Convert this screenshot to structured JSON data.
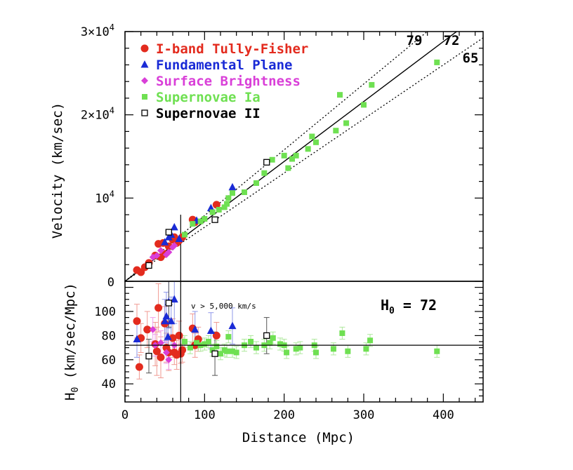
{
  "chart_data": [
    {
      "panel": "top",
      "type": "scatter",
      "ylabel": "Velocity (km/sec)",
      "xlim": [
        0,
        450
      ],
      "ylim": [
        0,
        30000
      ],
      "yticks": [
        {
          "value": 0,
          "label": "0"
        },
        {
          "value": 10000,
          "label": "10",
          "sup": "4"
        },
        {
          "value": 20000,
          "label": "2×10",
          "sup": "4"
        },
        {
          "value": 30000,
          "label": "3×10",
          "sup": "4"
        }
      ],
      "colors": {
        "tf": "#e32b1e",
        "fp": "#1a2bd6",
        "sbf": "#d93fd8",
        "sn1a": "#6fe052",
        "sn2": "#000000",
        "axis": "#000000"
      },
      "legend": [
        {
          "key": "tf",
          "marker": "circle",
          "label": "I-band Tully-Fisher"
        },
        {
          "key": "fp",
          "marker": "triangle",
          "label": "Fundamental Plane"
        },
        {
          "key": "sbf",
          "marker": "diamond",
          "label": "Surface Brightness"
        },
        {
          "key": "sn1a",
          "marker": "square",
          "label": "Supernovae Ia"
        },
        {
          "key": "sn2",
          "marker": "open-square",
          "label": "Supernovae II"
        }
      ],
      "hubble_lines": [
        {
          "h0": 79,
          "label": "79",
          "style": "dotted"
        },
        {
          "h0": 72,
          "label": "72",
          "style": "solid"
        },
        {
          "h0": 65,
          "label": "65",
          "style": "dotted"
        }
      ],
      "vline_x": 70,
      "series": [
        {
          "key": "tf",
          "points": [
            [
              15,
              1350
            ],
            [
              20,
              1100
            ],
            [
              25,
              1700
            ],
            [
              30,
              2200
            ],
            [
              38,
              3100
            ],
            [
              42,
              4500
            ],
            [
              45,
              2900
            ],
            [
              48,
              4600
            ],
            [
              50,
              3300
            ],
            [
              55,
              4200
            ],
            [
              60,
              5000
            ],
            [
              62,
              5300
            ],
            [
              65,
              4600
            ],
            [
              68,
              4900
            ],
            [
              72,
              5300
            ],
            [
              85,
              7400
            ],
            [
              88,
              7100
            ],
            [
              115,
              9200
            ]
          ]
        },
        {
          "key": "fp",
          "points": [
            [
              50,
              4700
            ],
            [
              55,
              5300
            ],
            [
              58,
              5600
            ],
            [
              62,
              6500
            ],
            [
              68,
              5100
            ],
            [
              90,
              7300
            ],
            [
              108,
              8800
            ],
            [
              135,
              11300
            ]
          ]
        },
        {
          "key": "sbf",
          "points": [
            [
              35,
              2900
            ],
            [
              40,
              3100
            ],
            [
              45,
              3700
            ],
            [
              52,
              3200
            ],
            [
              55,
              3500
            ],
            [
              60,
              4100
            ],
            [
              62,
              4300
            ]
          ]
        },
        {
          "key": "sn1a",
          "points": [
            [
              75,
              5600
            ],
            [
              85,
              6900
            ],
            [
              95,
              7200
            ],
            [
              100,
              7500
            ],
            [
              110,
              8300
            ],
            [
              118,
              8600
            ],
            [
              125,
              8900
            ],
            [
              128,
              9300
            ],
            [
              130,
              10000
            ],
            [
              135,
              10600
            ],
            [
              150,
              10700
            ],
            [
              165,
              11800
            ],
            [
              175,
              13000
            ],
            [
              185,
              14600
            ],
            [
              200,
              15100
            ],
            [
              205,
              13600
            ],
            [
              210,
              14700
            ],
            [
              215,
              15100
            ],
            [
              230,
              15900
            ],
            [
              235,
              17400
            ],
            [
              240,
              16700
            ],
            [
              265,
              18100
            ],
            [
              270,
              22400
            ],
            [
              278,
              19000
            ],
            [
              300,
              21200
            ],
            [
              310,
              23600
            ],
            [
              392,
              26300
            ]
          ]
        },
        {
          "key": "sn2",
          "points": [
            [
              30,
              1900
            ],
            [
              55,
              5900
            ],
            [
              113,
              7400
            ],
            [
              178,
              14300
            ]
          ]
        }
      ]
    },
    {
      "panel": "bottom",
      "type": "scatter",
      "xlabel": "Distance (Mpc)",
      "ylabel": "H",
      "ylabel_sub": "0",
      "ylabel_rest": " (km/sec/Mpc)",
      "xlim": [
        0,
        450
      ],
      "ylim": [
        25,
        125
      ],
      "xticks": [
        0,
        100,
        200,
        300,
        400
      ],
      "yticks": [
        40,
        60,
        80,
        100
      ],
      "hline_y": 72,
      "vline_x": 70,
      "annotation": "v > 5,000 km/s",
      "h0_label": "H",
      "h0_sub": "0",
      "h0_value": " =  72",
      "series": [
        {
          "key": "tf",
          "points": [
            [
              15,
              92,
              14
            ],
            [
              18,
              54,
              10
            ],
            [
              20,
              78,
              12
            ],
            [
              28,
              85,
              15
            ],
            [
              38,
              73,
              18
            ],
            [
              40,
              67,
              20
            ],
            [
              42,
              103,
              20
            ],
            [
              45,
              62,
              17
            ],
            [
              50,
              90,
              14
            ],
            [
              52,
              70,
              12
            ],
            [
              55,
              66,
              15
            ],
            [
              60,
              78,
              16
            ],
            [
              62,
              66,
              10
            ],
            [
              65,
              64,
              12
            ],
            [
              68,
              80,
              12
            ],
            [
              70,
              65,
              8
            ],
            [
              72,
              68,
              10
            ],
            [
              85,
              86,
              12
            ],
            [
              88,
              72,
              10
            ],
            [
              92,
              77,
              10
            ],
            [
              115,
              80,
              11
            ]
          ]
        },
        {
          "key": "fp",
          "points": [
            [
              15,
              77,
              15
            ],
            [
              50,
              92,
              18
            ],
            [
              52,
              96,
              20
            ],
            [
              54,
              79,
              15
            ],
            [
              55,
              108,
              22
            ],
            [
              58,
              92,
              20
            ],
            [
              62,
              110,
              20
            ],
            [
              88,
              85,
              15
            ],
            [
              108,
              84,
              15
            ],
            [
              135,
              88,
              15
            ]
          ]
        },
        {
          "key": "sbf",
          "points": [
            [
              35,
              85,
              10
            ],
            [
              38,
              72,
              9
            ],
            [
              45,
              74,
              10
            ],
            [
              52,
              66,
              9
            ],
            [
              55,
              60,
              8
            ],
            [
              62,
              72,
              8
            ]
          ]
        },
        {
          "key": "sn1a",
          "points": [
            [
              75,
              75,
              5
            ],
            [
              82,
              70,
              5
            ],
            [
              90,
              74,
              5
            ],
            [
              95,
              72,
              5
            ],
            [
              100,
              73,
              5
            ],
            [
              105,
              75,
              5
            ],
            [
              110,
              68,
              5
            ],
            [
              115,
              71,
              5
            ],
            [
              120,
              65,
              5
            ],
            [
              125,
              68,
              5
            ],
            [
              128,
              67,
              5
            ],
            [
              130,
              79,
              5
            ],
            [
              135,
              67,
              5
            ],
            [
              140,
              66,
              5
            ],
            [
              150,
              72,
              5
            ],
            [
              158,
              75,
              5
            ],
            [
              165,
              70,
              5
            ],
            [
              175,
              72,
              5
            ],
            [
              182,
              74,
              5
            ],
            [
              186,
              78,
              5
            ],
            [
              195,
              73,
              5
            ],
            [
              200,
              72,
              5
            ],
            [
              203,
              66,
              5
            ],
            [
              215,
              69,
              5
            ],
            [
              220,
              70,
              5
            ],
            [
              238,
              72,
              5
            ],
            [
              240,
              66,
              5
            ],
            [
              262,
              69,
              5
            ],
            [
              273,
              82,
              5
            ],
            [
              280,
              67,
              5
            ],
            [
              303,
              69,
              5
            ],
            [
              308,
              76,
              5
            ],
            [
              392,
              67,
              5
            ]
          ]
        },
        {
          "key": "sn2",
          "points": [
            [
              30,
              63,
              14
            ],
            [
              55,
              107,
              20
            ],
            [
              113,
              65,
              18
            ],
            [
              178,
              80,
              15
            ]
          ]
        }
      ]
    }
  ]
}
